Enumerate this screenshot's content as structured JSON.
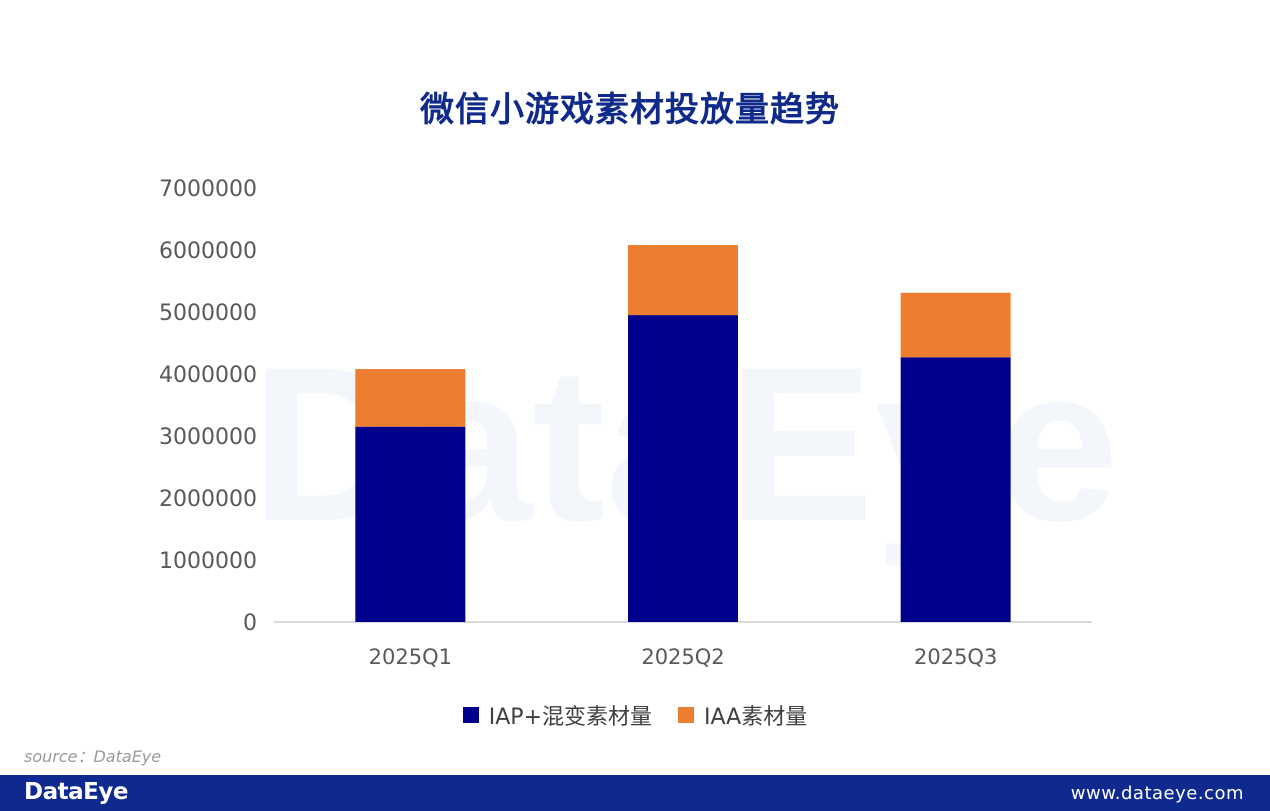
{
  "chart_data": {
    "type": "bar",
    "stacked": true,
    "title": "微信小游戏素材投放量趋势",
    "categories": [
      "2025Q1",
      "2025Q2",
      "2025Q3"
    ],
    "series": [
      {
        "name": "IAP+混变素材量",
        "values": [
          3150000,
          4950000,
          4270000
        ],
        "color": "#01008c"
      },
      {
        "name": "IAA素材量",
        "values": [
          930000,
          1130000,
          1040000
        ],
        "color": "#ed7d31"
      }
    ],
    "yticks": [
      "0",
      "1000000",
      "2000000",
      "3000000",
      "4000000",
      "5000000",
      "6000000",
      "7000000"
    ],
    "ylim": [
      0,
      7000000
    ],
    "xlabel": "",
    "ylabel": "",
    "grid": false,
    "legend_position": "bottom"
  },
  "watermark": "DataEye",
  "source_text": "source：DataEye",
  "footer": {
    "logo": "DataEye",
    "url": "www.dataeye.com"
  },
  "colors": {
    "title": "#0f2a8a",
    "footer_bg": "#0e2a8e"
  }
}
